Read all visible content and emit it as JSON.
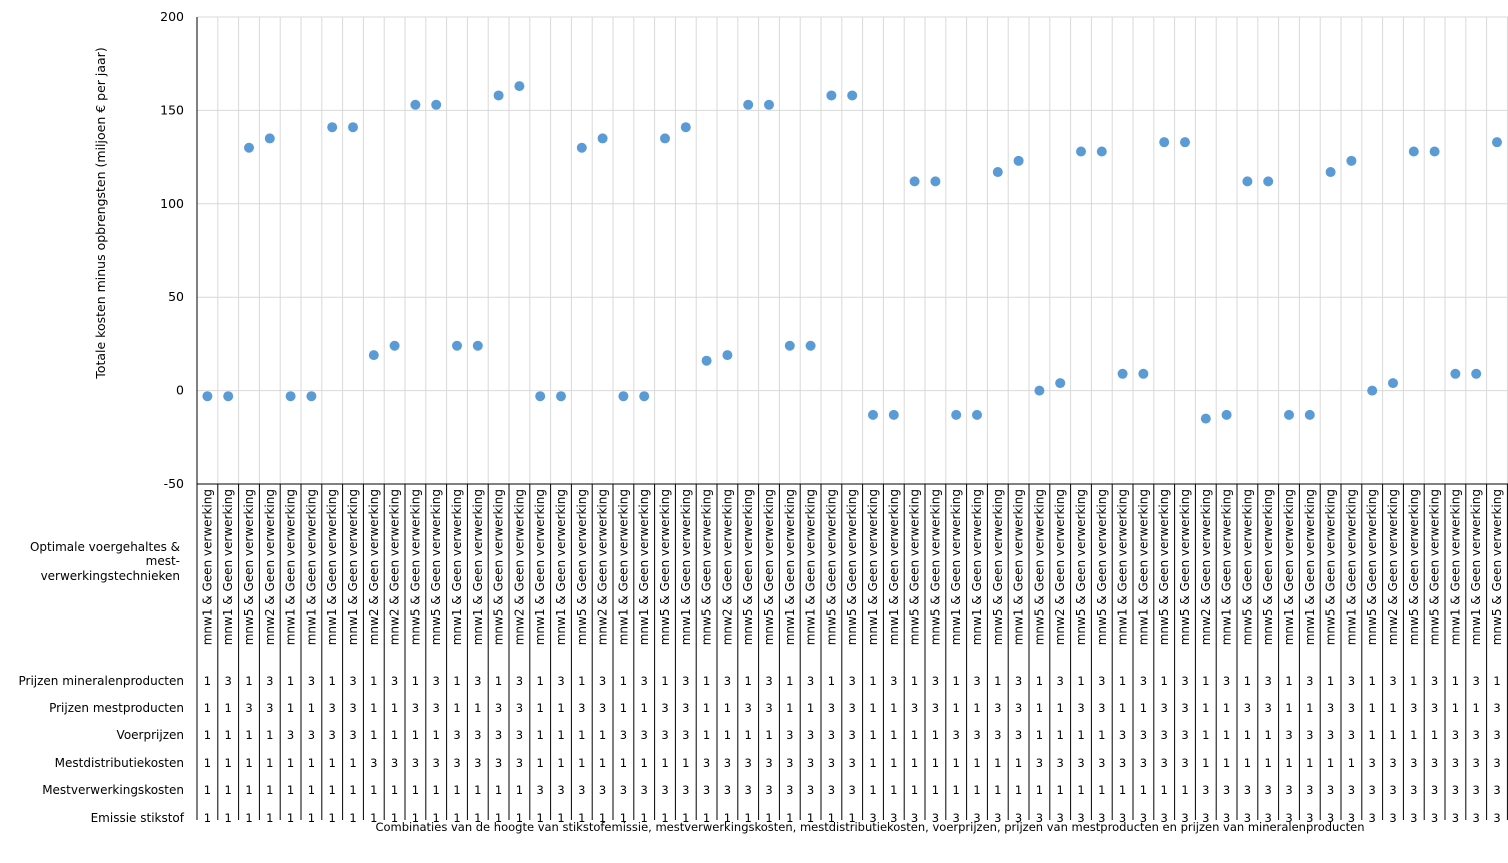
{
  "chart_data": {
    "type": "scatter",
    "title": "",
    "ylabel": "Totale kosten minus opbrengsten (miljoen € per jaar)",
    "xlabel": "Combinaties van de hoogte van stikstofemissie, mestverwerkingskosten, mestdistributiekosten, voerprijzen, prijzen van mestproducten en prijzen van mineralenproducten",
    "ylim": [
      -50,
      200
    ],
    "yticks": [
      -50,
      0,
      50,
      100,
      150,
      200
    ],
    "grid": true,
    "marker_color": "#5b9bd5",
    "row_label_main": "Optimale voergehaltes &",
    "row_label_sub1": "mest-",
    "row_label_sub2": "verwerkingstechnieken",
    "category_labels": [
      "mnw1 & Geen verwerking",
      "mnw1 & Geen verwerking",
      "mnw5 & Geen verwerking",
      "mnw2 & Geen verwerking",
      "mnw1 & Geen verwerking",
      "mnw1 & Geen verwerking",
      "mnw1 & Geen verwerking",
      "mnw1 & Geen verwerking",
      "mnw2 & Geen verwerking",
      "mnw2 & Geen verwerking",
      "mnw5 & Geen verwerking",
      "mnw5 & Geen verwerking",
      "mnw1 & Geen verwerking",
      "mnw1 & Geen verwerking",
      "mnw5 & Geen verwerking",
      "mnw2 & Geen verwerking",
      "mnw1 & Geen verwerking",
      "mnw1 & Geen verwerking",
      "mnw5 & Geen verwerking",
      "mnw2 & Geen verwerking",
      "mnw1 & Geen verwerking",
      "mnw1 & Geen verwerking",
      "mnw5 & Geen verwerking",
      "mnw1 & Geen verwerking",
      "mnw5 & Geen verwerking",
      "mnw2 & Geen verwerking",
      "mnw5 & Geen verwerking",
      "mnw5 & Geen verwerking",
      "mnw1 & Geen verwerking",
      "mnw1 & Geen verwerking",
      "mnw5 & Geen verwerking",
      "mnw5 & Geen verwerking",
      "mnw1 & Geen verwerking",
      "mnw1 & Geen verwerking",
      "mnw5 & Geen verwerking",
      "mnw5 & Geen verwerking",
      "mnw1 & Geen verwerking",
      "mnw1 & Geen verwerking",
      "mnw5 & Geen verwerking",
      "mnw1 & Geen verwerking",
      "mnw5 & Geen verwerking",
      "mnw2 & Geen verwerking",
      "mnw5 & Geen verwerking",
      "mnw5 & Geen verwerking",
      "mnw1 & Geen verwerking",
      "mnw1 & Geen verwerking",
      "mnw5 & Geen verwerking",
      "mnw5 & Geen verwerking",
      "mnw2 & Geen verwerking",
      "mnw1 & Geen verwerking",
      "mnw5 & Geen verwerking",
      "mnw5 & Geen verwerking",
      "mnw1 & Geen verwerking",
      "mnw1 & Geen verwerking",
      "mnw5 & Geen verwerking",
      "mnw1 & Geen verwerking",
      "mnw5 & Geen verwerking",
      "mnw2 & Geen verwerking",
      "mnw5 & Geen verwerking",
      "mnw5 & Geen verwerking",
      "mnw1 & Geen verwerking",
      "mnw1 & Geen verwerking",
      "mnw5 & Geen verwerking",
      "mnw5 & Geen verwerking"
    ],
    "values": [
      -3,
      -3,
      130,
      135,
      -3,
      -3,
      141,
      141,
      19,
      24,
      153,
      153,
      24,
      24,
      158,
      163,
      -3,
      -3,
      130,
      135,
      -3,
      -3,
      135,
      141,
      16,
      19,
      153,
      153,
      24,
      24,
      158,
      158,
      -13,
      -13,
      112,
      112,
      -13,
      -13,
      117,
      123,
      0,
      4,
      128,
      128,
      9,
      9,
      133,
      133,
      -15,
      -13,
      112,
      112,
      -13,
      -13,
      117,
      123,
      0,
      4,
      128,
      128,
      9,
      9,
      133,
      133
    ],
    "rows": [
      {
        "label": "Prijzen mineralenproducten",
        "values": [
          "1",
          "3",
          "1",
          "3",
          "1",
          "3",
          "1",
          "3",
          "1",
          "3",
          "1",
          "3",
          "1",
          "3",
          "1",
          "3",
          "1",
          "3",
          "1",
          "3",
          "1",
          "3",
          "1",
          "3",
          "1",
          "3",
          "1",
          "3",
          "1",
          "3",
          "1",
          "3",
          "1",
          "3",
          "1",
          "3",
          "1",
          "3",
          "1",
          "3",
          "1",
          "3",
          "1",
          "3",
          "1",
          "3",
          "1",
          "3",
          "1",
          "3",
          "1",
          "3",
          "1",
          "3",
          "1",
          "3",
          "1",
          "3",
          "1",
          "3",
          "1",
          "3",
          "1",
          "3"
        ]
      },
      {
        "label": "Prijzen mestproducten",
        "values": [
          "1",
          "1",
          "3",
          "3",
          "1",
          "1",
          "3",
          "3",
          "1",
          "1",
          "3",
          "3",
          "1",
          "1",
          "3",
          "3",
          "1",
          "1",
          "3",
          "3",
          "1",
          "1",
          "3",
          "3",
          "1",
          "1",
          "3",
          "3",
          "1",
          "1",
          "3",
          "3",
          "1",
          "1",
          "3",
          "3",
          "1",
          "1",
          "3",
          "3",
          "1",
          "1",
          "3",
          "3",
          "1",
          "1",
          "3",
          "3",
          "1",
          "1",
          "3",
          "3",
          "1",
          "1",
          "3",
          "3",
          "1",
          "1",
          "3",
          "3",
          "1",
          "1",
          "3",
          "3"
        ]
      },
      {
        "label": "Voerprijzen",
        "values": [
          "1",
          "1",
          "1",
          "1",
          "3",
          "3",
          "3",
          "3",
          "1",
          "1",
          "1",
          "1",
          "3",
          "3",
          "3",
          "3",
          "1",
          "1",
          "1",
          "1",
          "3",
          "3",
          "3",
          "3",
          "1",
          "1",
          "1",
          "1",
          "3",
          "3",
          "3",
          "3",
          "1",
          "1",
          "1",
          "1",
          "3",
          "3",
          "3",
          "3",
          "1",
          "1",
          "1",
          "1",
          "3",
          "3",
          "3",
          "3",
          "1",
          "1",
          "1",
          "1",
          "3",
          "3",
          "3",
          "3",
          "1",
          "1",
          "1",
          "1",
          "3",
          "3",
          "3",
          "3"
        ]
      },
      {
        "label": "Mestdistributiekosten",
        "values": [
          "1",
          "1",
          "1",
          "1",
          "1",
          "1",
          "1",
          "1",
          "3",
          "3",
          "3",
          "3",
          "3",
          "3",
          "3",
          "3",
          "1",
          "1",
          "1",
          "1",
          "1",
          "1",
          "1",
          "1",
          "3",
          "3",
          "3",
          "3",
          "3",
          "3",
          "3",
          "3",
          "1",
          "1",
          "1",
          "1",
          "1",
          "1",
          "1",
          "1",
          "3",
          "3",
          "3",
          "3",
          "3",
          "3",
          "3",
          "3",
          "1",
          "1",
          "1",
          "1",
          "1",
          "1",
          "1",
          "1",
          "3",
          "3",
          "3",
          "3",
          "3",
          "3",
          "3",
          "3"
        ]
      },
      {
        "label": "Mestverwerkingskosten",
        "values": [
          "1",
          "1",
          "1",
          "1",
          "1",
          "1",
          "1",
          "1",
          "1",
          "1",
          "1",
          "1",
          "1",
          "1",
          "1",
          "1",
          "3",
          "3",
          "3",
          "3",
          "3",
          "3",
          "3",
          "3",
          "3",
          "3",
          "3",
          "3",
          "3",
          "3",
          "3",
          "3",
          "1",
          "1",
          "1",
          "1",
          "1",
          "1",
          "1",
          "1",
          "1",
          "1",
          "1",
          "1",
          "1",
          "1",
          "1",
          "1",
          "3",
          "3",
          "3",
          "3",
          "3",
          "3",
          "3",
          "3",
          "3",
          "3",
          "3",
          "3",
          "3",
          "3",
          "3",
          "3"
        ]
      },
      {
        "label": "Emissie stikstof",
        "values": [
          "1",
          "1",
          "1",
          "1",
          "1",
          "1",
          "1",
          "1",
          "1",
          "1",
          "1",
          "1",
          "1",
          "1",
          "1",
          "1",
          "1",
          "1",
          "1",
          "1",
          "1",
          "1",
          "1",
          "1",
          "1",
          "1",
          "1",
          "1",
          "1",
          "1",
          "1",
          "1",
          "3",
          "3",
          "3",
          "3",
          "3",
          "3",
          "3",
          "3",
          "3",
          "3",
          "3",
          "3",
          "3",
          "3",
          "3",
          "3",
          "3",
          "3",
          "3",
          "3",
          "3",
          "3",
          "3",
          "3",
          "3",
          "3",
          "3",
          "3",
          "3",
          "3",
          "3",
          "3"
        ]
      }
    ]
  }
}
